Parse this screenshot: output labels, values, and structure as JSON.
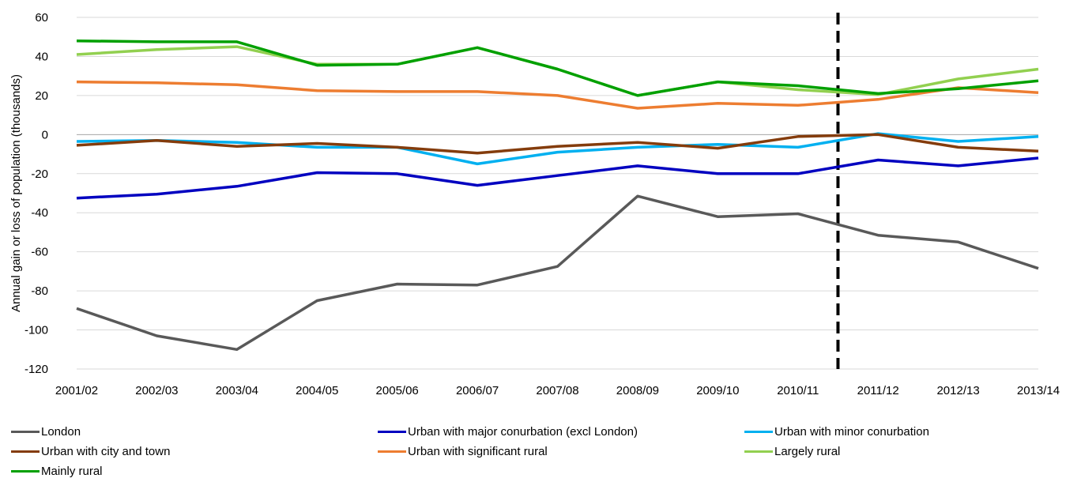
{
  "chart_data": {
    "type": "line",
    "title": "",
    "xlabel": "",
    "ylabel": "Annual gain or loss of population (thousands)",
    "ylim": [
      -120,
      60
    ],
    "yticks": [
      60,
      40,
      20,
      0,
      -20,
      -40,
      -60,
      -80,
      -100,
      -120
    ],
    "categories": [
      "2001/02",
      "2002/03",
      "2003/04",
      "2004/05",
      "2005/06",
      "2006/07",
      "2007/08",
      "2008/09",
      "2009/10",
      "2010/11",
      "2011/12",
      "2012/13",
      "2013/14"
    ],
    "grid": true,
    "legend_position": "bottom",
    "vertical_marker": {
      "between": [
        "2010/11",
        "2011/12"
      ],
      "style": "dashed",
      "color": "#000000"
    },
    "series": [
      {
        "name": "London",
        "color": "#595959",
        "values": [
          -89,
          -103,
          -110,
          -85,
          -76.5,
          -77,
          -67.5,
          -31.5,
          -42,
          -40.5,
          -51.5,
          -55,
          -68.5
        ]
      },
      {
        "name": "Urban with major conurbation (excl London)",
        "color": "#0000c0",
        "values": [
          -32.5,
          -30.5,
          -26.5,
          -19.5,
          -20,
          -26,
          -21,
          -16,
          -20,
          -20,
          -13,
          -16,
          -12
        ]
      },
      {
        "name": "Urban with minor conurbation",
        "color": "#00b0f0",
        "values": [
          -3.5,
          -3,
          -4,
          -6.5,
          -6.5,
          -15,
          -9,
          -6.5,
          -5,
          -6.5,
          0.5,
          -3.5,
          -1
        ]
      },
      {
        "name": "Urban with city and town",
        "color": "#843c0c",
        "values": [
          -5.5,
          -3,
          -6,
          -4.5,
          -6.5,
          -9.5,
          -6,
          -4,
          -7,
          -1,
          0,
          -6.5,
          -8.5
        ]
      },
      {
        "name": "Urban with significant rural",
        "color": "#ed7d31",
        "values": [
          27,
          26.5,
          25.5,
          22.5,
          22,
          22,
          20,
          13.5,
          16,
          15,
          18,
          24,
          21.5
        ]
      },
      {
        "name": "Largely rural",
        "color": "#92d050",
        "values": [
          41,
          43.5,
          45,
          36,
          36,
          44.5,
          33.5,
          20,
          27,
          23,
          20.5,
          28.5,
          33.5
        ]
      },
      {
        "name": "Mainly rural",
        "color": "#00a000",
        "values": [
          48,
          47.5,
          47.5,
          35.5,
          36,
          44.5,
          33.5,
          20,
          27,
          25,
          21,
          23.5,
          27.5
        ]
      }
    ]
  }
}
